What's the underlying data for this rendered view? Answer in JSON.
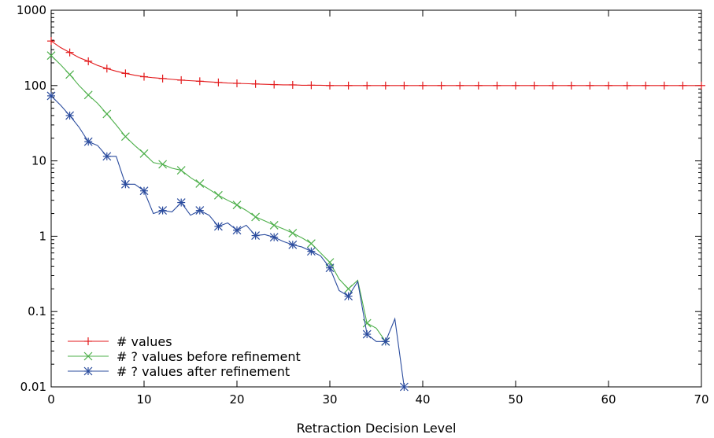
{
  "chart_data": {
    "type": "line",
    "title": "",
    "xlabel": "Retraction Decision Level",
    "ylabel": "",
    "xlim": [
      0,
      70
    ],
    "ylim": [
      0.01,
      1000
    ],
    "yscale": "log",
    "grid": false,
    "legend_position": "bottom-left",
    "x_ticks": [
      0,
      10,
      20,
      30,
      40,
      50,
      60,
      70
    ],
    "x_tick_labels": [
      "0",
      "10",
      "20",
      "30",
      "40",
      "50",
      "60",
      "70"
    ],
    "y_ticks": [
      0.01,
      0.1,
      1,
      10,
      100,
      1000
    ],
    "y_tick_labels": [
      "0.01",
      "0.1",
      "1",
      "10",
      "100",
      "1000"
    ],
    "series": [
      {
        "name": "# values",
        "color": "#e31a1c",
        "marker": "plus",
        "x": [
          0,
          1,
          2,
          3,
          4,
          5,
          6,
          7,
          8,
          9,
          10,
          11,
          12,
          13,
          14,
          15,
          16,
          17,
          18,
          19,
          20,
          21,
          22,
          23,
          24,
          25,
          26,
          27,
          28,
          29,
          30,
          31,
          32,
          33,
          34,
          35,
          36,
          37,
          38,
          39,
          40,
          41,
          42,
          43,
          44,
          45,
          46,
          47,
          48,
          49,
          50,
          51,
          52,
          53,
          54,
          55,
          56,
          57,
          58,
          59,
          60,
          61,
          62,
          63,
          64,
          65,
          66,
          67,
          68,
          69,
          70
        ],
        "y": [
          390,
          320,
          275,
          235,
          210,
          185,
          168,
          155,
          145,
          137,
          131,
          127,
          124,
          121,
          118,
          116,
          114,
          112,
          110,
          108,
          107,
          106,
          105,
          104,
          103,
          102,
          102,
          101,
          101,
          101,
          100,
          100,
          100,
          100,
          100,
          100,
          100,
          100,
          100,
          100,
          100,
          100,
          100,
          100,
          100,
          100,
          100,
          100,
          100,
          100,
          100,
          100,
          100,
          100,
          100,
          100,
          100,
          100,
          100,
          100,
          100,
          100,
          100,
          100,
          100,
          100,
          100,
          100,
          100,
          100,
          100
        ]
      },
      {
        "name": "# ? values before refinement",
        "color": "#4daf4a",
        "marker": "x",
        "x": [
          0,
          1,
          2,
          3,
          4,
          5,
          6,
          7,
          8,
          9,
          10,
          11,
          12,
          13,
          14,
          15,
          16,
          17,
          18,
          19,
          20,
          21,
          22,
          23,
          24,
          25,
          26,
          27,
          28,
          29,
          30,
          31,
          32,
          33,
          34,
          35,
          36
        ],
        "y": [
          250,
          190,
          140,
          100,
          75,
          58,
          42,
          30,
          21,
          16,
          12.5,
          9.5,
          9,
          8,
          7.5,
          6,
          5,
          4.2,
          3.5,
          3,
          2.6,
          2.2,
          1.8,
          1.6,
          1.4,
          1.25,
          1.1,
          0.95,
          0.8,
          0.6,
          0.45,
          0.27,
          0.2,
          0.26,
          0.07,
          0.06,
          0.04
        ]
      },
      {
        "name": "# ? values after refinement",
        "color": "#2b4c9e",
        "marker": "star",
        "x": [
          0,
          1,
          2,
          3,
          4,
          5,
          6,
          7,
          8,
          9,
          10,
          11,
          12,
          13,
          14,
          15,
          16,
          17,
          18,
          19,
          20,
          21,
          22,
          23,
          24,
          25,
          26,
          27,
          28,
          29,
          30,
          31,
          32,
          33,
          34,
          35,
          36,
          37,
          38
        ],
        "y": [
          73,
          55,
          40,
          28,
          18,
          16,
          11.5,
          11.5,
          4.9,
          4.9,
          4,
          2,
          2.2,
          2.1,
          2.8,
          1.9,
          2.2,
          1.9,
          1.35,
          1.5,
          1.2,
          1.4,
          1.02,
          1.05,
          0.97,
          0.85,
          0.77,
          0.72,
          0.63,
          0.55,
          0.38,
          0.19,
          0.16,
          0.25,
          0.05,
          0.04,
          0.04,
          0.08,
          0.01
        ]
      }
    ]
  }
}
